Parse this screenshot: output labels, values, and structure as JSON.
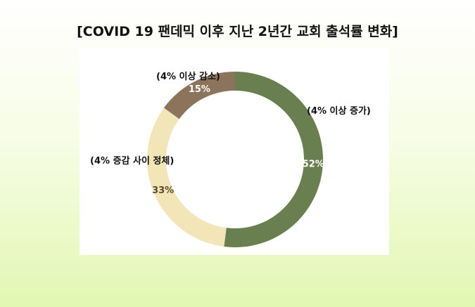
{
  "title": "[COVID 19 팬데믹 이후 지난 2년간 교회 출석률 변화]",
  "chart_data": {
    "type": "pie",
    "variant": "donut",
    "slices": [
      {
        "label": "(4% 이상 증가)",
        "value": 52,
        "value_label": "52%",
        "color": "#6a7f4f",
        "text_color": "#ffffff"
      },
      {
        "label": "(4% 증감 사이 정체)",
        "value": 33,
        "value_label": "33%",
        "color": "#f2e6b8",
        "text_color": "#5b4b2b"
      },
      {
        "label": "(4% 이상 감소)",
        "value": 15,
        "value_label": "15%",
        "color": "#8c735b",
        "text_color": "#ffffff"
      }
    ],
    "start_angle_deg": 0,
    "direction": "clockwise",
    "legend": "none"
  },
  "colors": {
    "panel_background": "#ffffff",
    "page_gradient_bottom": "#e2f7b2"
  }
}
